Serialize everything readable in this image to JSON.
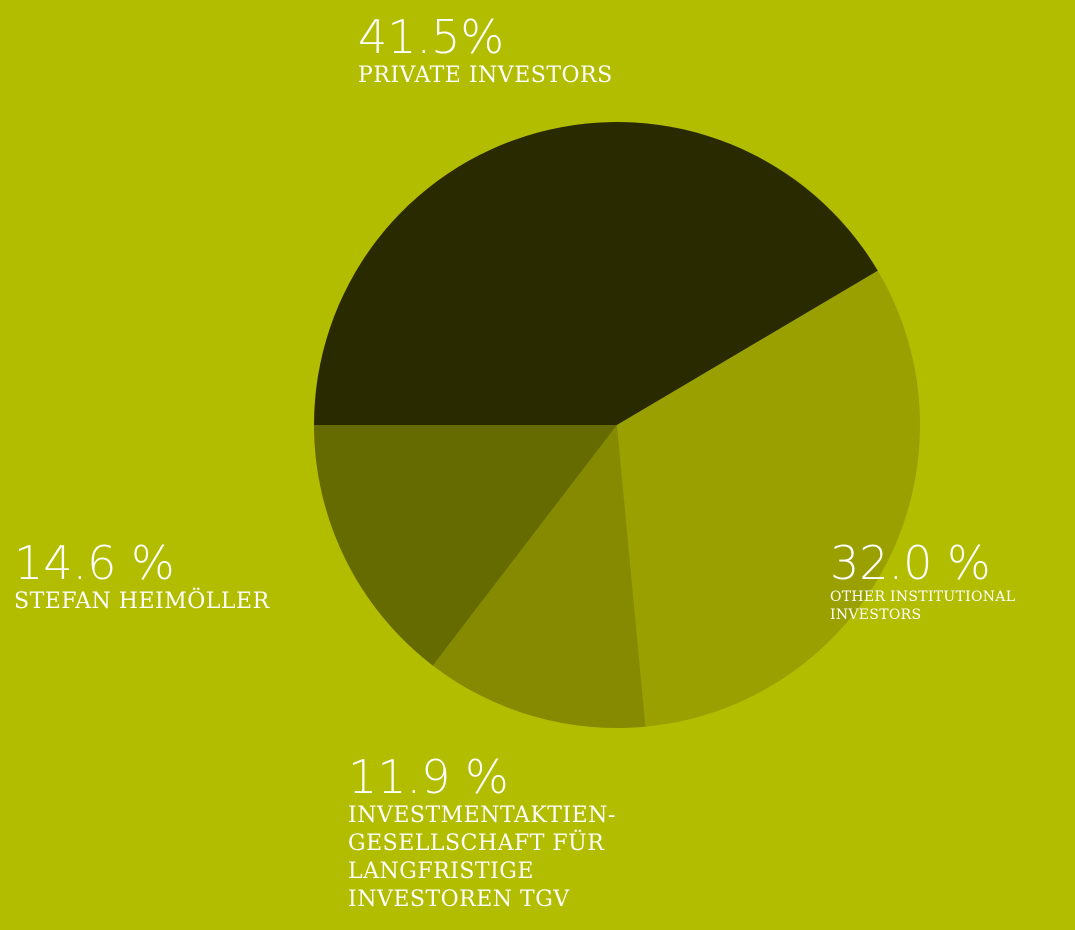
{
  "chart_data": {
    "type": "pie",
    "categories": [
      "PRIVATE INVESTORS",
      "OTHER INSTITUTIONAL INVESTORS",
      "INVESTMENTAKTIEN-GESELLSCHAFT FÜR LANGFRISTIGE INVESTOREN TGV",
      "STEFAN HEIMÖLLER"
    ],
    "values": [
      41.5,
      32.0,
      11.9,
      14.6
    ],
    "value_labels": [
      "41.5%",
      "32.0 %",
      "11.9 %",
      "14.6 %"
    ],
    "colors": [
      "#2a2a00",
      "#99a000",
      "#858a00",
      "#666b00"
    ]
  }
}
